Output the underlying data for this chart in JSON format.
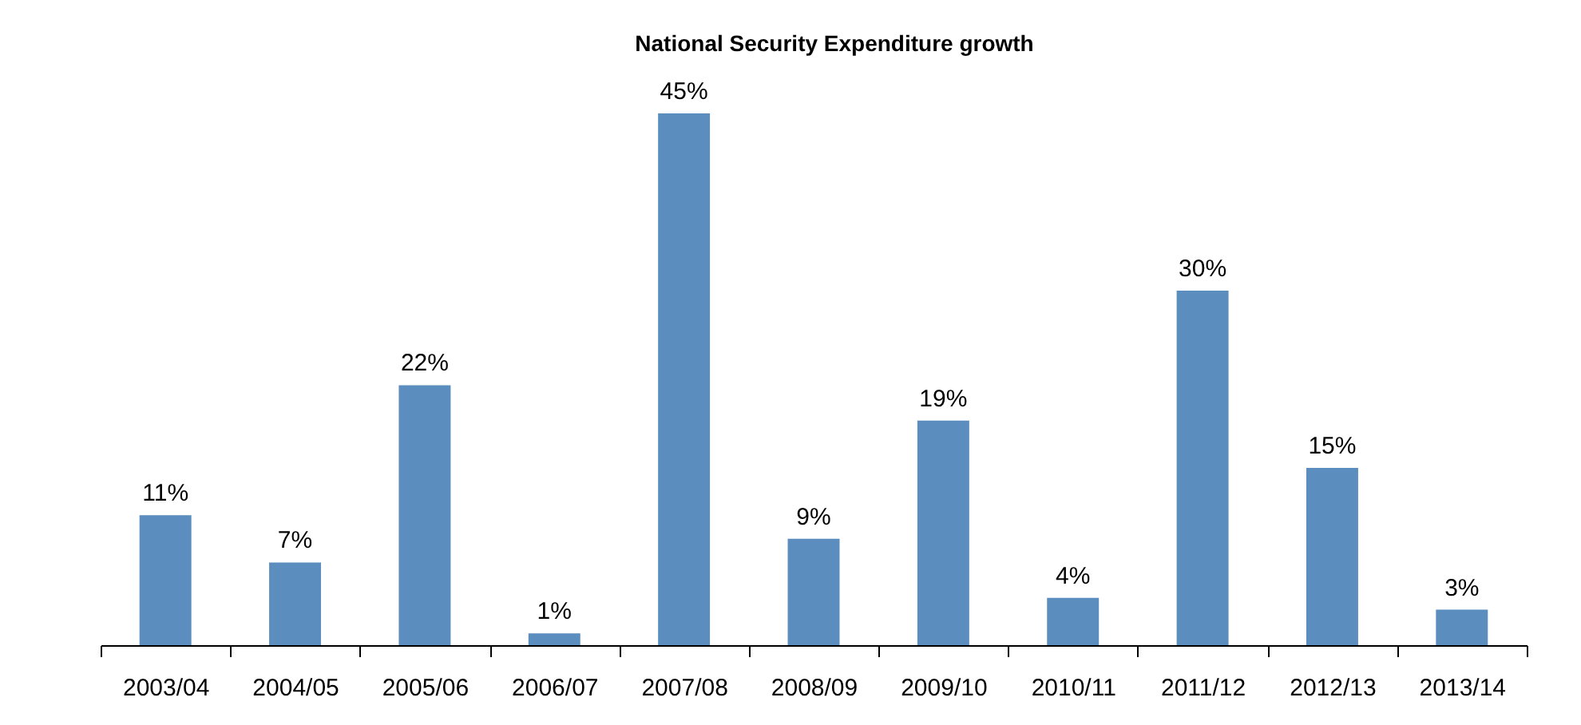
{
  "chart_data": {
    "type": "bar",
    "title": "National Security Expenditure growth",
    "categories": [
      "2003/04",
      "2004/05",
      "2005/06",
      "2006/07",
      "2007/08",
      "2008/09",
      "2009/10",
      "2010/11",
      "2011/12",
      "2012/13",
      "2013/14"
    ],
    "values": [
      11,
      7,
      22,
      1,
      45,
      9,
      19,
      4,
      30,
      15,
      3
    ],
    "value_labels": [
      "11%",
      "7%",
      "22%",
      "1%",
      "45%",
      "9%",
      "19%",
      "4%",
      "30%",
      "15%",
      "3%"
    ],
    "color": "#5b8dbe"
  }
}
